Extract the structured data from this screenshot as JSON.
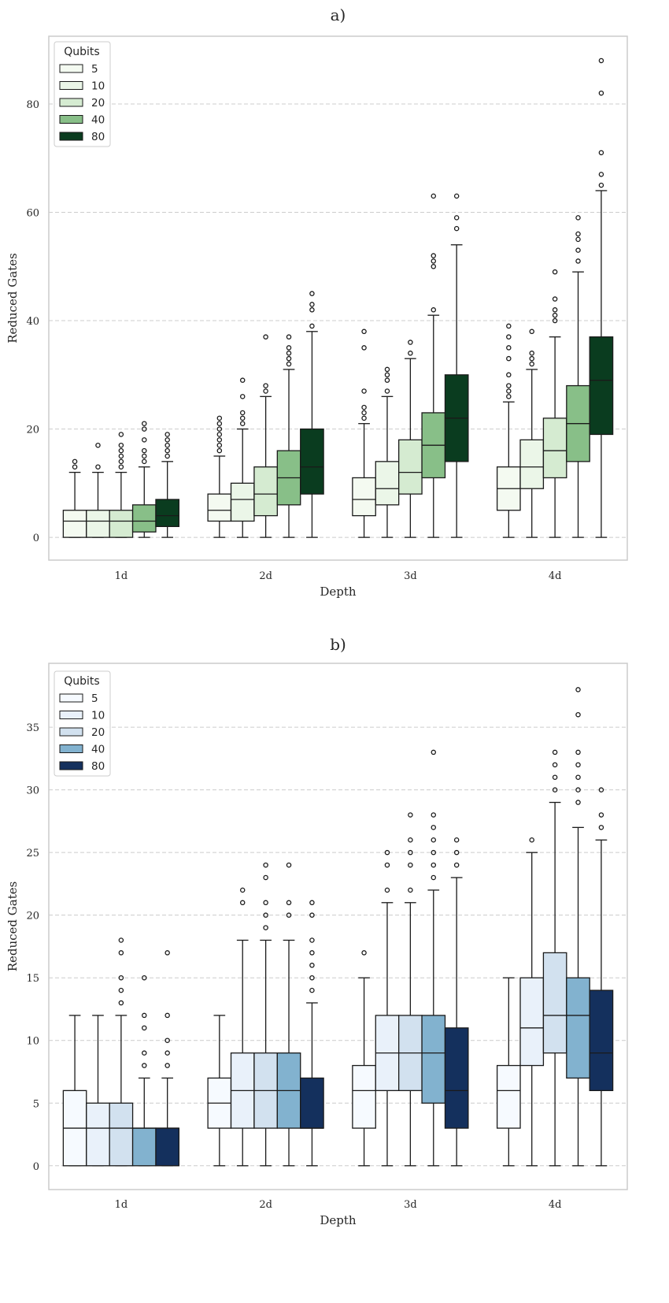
{
  "chart_data": [
    {
      "type": "box",
      "title": "a)",
      "xlabel": "Depth",
      "ylabel": "Reduced Gates",
      "ylim": [
        -4.2,
        92.5
      ],
      "yticks": [
        0,
        20,
        40,
        60,
        80
      ],
      "grid": "horizontal-dashed",
      "categories": [
        "1d",
        "2d",
        "3d",
        "4d"
      ],
      "legend": {
        "title": "Qubits",
        "placement": "top-left"
      },
      "series": [
        {
          "name": "5",
          "color": "#f4faf1",
          "boxes": [
            {
              "whislo": 0,
              "q1": 0,
              "med": 3,
              "q3": 5,
              "whishi": 12,
              "fliers": [
                13,
                14
              ]
            },
            {
              "whislo": 0,
              "q1": 3,
              "med": 5,
              "q3": 8,
              "whishi": 15,
              "fliers": [
                16,
                17,
                18,
                19,
                20,
                21,
                22
              ]
            },
            {
              "whislo": 0,
              "q1": 4,
              "med": 7,
              "q3": 11,
              "whishi": 21,
              "fliers": [
                22,
                23,
                24,
                27,
                35,
                38
              ]
            },
            {
              "whislo": 0,
              "q1": 5,
              "med": 9,
              "q3": 13,
              "whishi": 25,
              "fliers": [
                26,
                27,
                28,
                30,
                33,
                35,
                37,
                39
              ]
            }
          ]
        },
        {
          "name": "10",
          "color": "#ebf6e8",
          "boxes": [
            {
              "whislo": 0,
              "q1": 0,
              "med": 3,
              "q3": 5,
              "whishi": 12,
              "fliers": [
                13,
                17
              ]
            },
            {
              "whislo": 0,
              "q1": 3,
              "med": 7,
              "q3": 10,
              "whishi": 20,
              "fliers": [
                21,
                22,
                23,
                26,
                29
              ]
            },
            {
              "whislo": 0,
              "q1": 6,
              "med": 9,
              "q3": 14,
              "whishi": 26,
              "fliers": [
                27,
                29,
                30,
                31
              ]
            },
            {
              "whislo": 0,
              "q1": 9,
              "med": 13,
              "q3": 18,
              "whishi": 31,
              "fliers": [
                32,
                33,
                34,
                38
              ]
            }
          ]
        },
        {
          "name": "20",
          "color": "#d5ebd1",
          "boxes": [
            {
              "whislo": 0,
              "q1": 0,
              "med": 3,
              "q3": 5,
              "whishi": 12,
              "fliers": [
                13,
                14,
                15,
                16,
                17,
                19
              ]
            },
            {
              "whislo": 0,
              "q1": 4,
              "med": 8,
              "q3": 13,
              "whishi": 26,
              "fliers": [
                27,
                28,
                37
              ]
            },
            {
              "whislo": 0,
              "q1": 8,
              "med": 12,
              "q3": 18,
              "whishi": 33,
              "fliers": [
                34,
                36
              ]
            },
            {
              "whislo": 0,
              "q1": 11,
              "med": 16,
              "q3": 22,
              "whishi": 37,
              "fliers": [
                40,
                41,
                42,
                44,
                49
              ]
            }
          ]
        },
        {
          "name": "40",
          "color": "#88bf88",
          "boxes": [
            {
              "whislo": 0,
              "q1": 1,
              "med": 3,
              "q3": 6,
              "whishi": 13,
              "fliers": [
                14,
                15,
                16,
                18,
                20,
                21
              ]
            },
            {
              "whislo": 0,
              "q1": 6,
              "med": 11,
              "q3": 16,
              "whishi": 31,
              "fliers": [
                32,
                33,
                34,
                35,
                37
              ]
            },
            {
              "whislo": 0,
              "q1": 11,
              "med": 17,
              "q3": 23,
              "whishi": 41,
              "fliers": [
                42,
                50,
                51,
                52,
                63
              ]
            },
            {
              "whislo": 0,
              "q1": 14,
              "med": 21,
              "q3": 28,
              "whishi": 49,
              "fliers": [
                51,
                53,
                55,
                56,
                59
              ]
            }
          ]
        },
        {
          "name": "80",
          "color": "#0a3c1f",
          "boxes": [
            {
              "whislo": 0,
              "q1": 2,
              "med": 4,
              "q3": 7,
              "whishi": 14,
              "fliers": [
                15,
                16,
                17,
                18,
                19
              ]
            },
            {
              "whislo": 0,
              "q1": 8,
              "med": 13,
              "q3": 20,
              "whishi": 38,
              "fliers": [
                39,
                42,
                43,
                45
              ]
            },
            {
              "whislo": 0,
              "q1": 14,
              "med": 22,
              "q3": 30,
              "whishi": 54,
              "fliers": [
                57,
                59,
                63
              ]
            },
            {
              "whislo": 0,
              "q1": 19,
              "med": 29,
              "q3": 37,
              "whishi": 64,
              "fliers": [
                65,
                67,
                71,
                82,
                88
              ]
            }
          ]
        }
      ]
    },
    {
      "type": "box",
      "title": "b)",
      "xlabel": "Depth",
      "ylabel": "Reduced Gates",
      "ylim": [
        -1.9,
        40.1
      ],
      "yticks": [
        0,
        5,
        10,
        15,
        20,
        25,
        30,
        35
      ],
      "grid": "horizontal-dashed",
      "categories": [
        "1d",
        "2d",
        "3d",
        "4d"
      ],
      "legend": {
        "title": "Qubits",
        "placement": "top-left"
      },
      "series": [
        {
          "name": "5",
          "color": "#f6faff",
          "boxes": [
            {
              "whislo": 0,
              "q1": 0,
              "med": 3,
              "q3": 6,
              "whishi": 12,
              "fliers": []
            },
            {
              "whislo": 0,
              "q1": 3,
              "med": 5,
              "q3": 7,
              "whishi": 12,
              "fliers": []
            },
            {
              "whislo": 0,
              "q1": 3,
              "med": 6,
              "q3": 8,
              "whishi": 15,
              "fliers": [
                17
              ]
            },
            {
              "whislo": 0,
              "q1": 3,
              "med": 6,
              "q3": 8,
              "whishi": 15,
              "fliers": []
            }
          ]
        },
        {
          "name": "10",
          "color": "#e9f1fa",
          "boxes": [
            {
              "whislo": 0,
              "q1": 0,
              "med": 3,
              "q3": 5,
              "whishi": 12,
              "fliers": []
            },
            {
              "whislo": 0,
              "q1": 3,
              "med": 6,
              "q3": 9,
              "whishi": 18,
              "fliers": [
                21,
                22
              ]
            },
            {
              "whislo": 0,
              "q1": 6,
              "med": 9,
              "q3": 12,
              "whishi": 21,
              "fliers": [
                22,
                24,
                25
              ]
            },
            {
              "whislo": 0,
              "q1": 8,
              "med": 11,
              "q3": 15,
              "whishi": 25,
              "fliers": [
                26
              ]
            }
          ]
        },
        {
          "name": "20",
          "color": "#d2e1ef",
          "boxes": [
            {
              "whislo": 0,
              "q1": 0,
              "med": 3,
              "q3": 5,
              "whishi": 12,
              "fliers": [
                13,
                14,
                15,
                17,
                18
              ]
            },
            {
              "whislo": 0,
              "q1": 3,
              "med": 6,
              "q3": 9,
              "whishi": 18,
              "fliers": [
                19,
                20,
                21,
                23,
                24
              ]
            },
            {
              "whislo": 0,
              "q1": 6,
              "med": 9,
              "q3": 12,
              "whishi": 21,
              "fliers": [
                22,
                24,
                25,
                26,
                28
              ]
            },
            {
              "whislo": 0,
              "q1": 9,
              "med": 12,
              "q3": 17,
              "whishi": 29,
              "fliers": [
                30,
                31,
                32,
                33
              ]
            }
          ]
        },
        {
          "name": "40",
          "color": "#82b2cf",
          "boxes": [
            {
              "whislo": 0,
              "q1": 0,
              "med": 3,
              "q3": 3,
              "whishi": 7,
              "fliers": [
                8,
                9,
                11,
                12,
                15
              ]
            },
            {
              "whislo": 0,
              "q1": 3,
              "med": 6,
              "q3": 9,
              "whishi": 18,
              "fliers": [
                20,
                21,
                24
              ]
            },
            {
              "whislo": 0,
              "q1": 5,
              "med": 9,
              "q3": 12,
              "whishi": 22,
              "fliers": [
                23,
                24,
                25,
                26,
                27,
                28,
                33
              ]
            },
            {
              "whislo": 0,
              "q1": 7,
              "med": 12,
              "q3": 15,
              "whishi": 27,
              "fliers": [
                29,
                30,
                31,
                32,
                33,
                36,
                38
              ]
            }
          ]
        },
        {
          "name": "80",
          "color": "#14305d",
          "boxes": [
            {
              "whislo": 0,
              "q1": 0,
              "med": 3,
              "q3": 3,
              "whishi": 7,
              "fliers": [
                8,
                9,
                10,
                12,
                17
              ]
            },
            {
              "whislo": 0,
              "q1": 3,
              "med": 3,
              "q3": 7,
              "whishi": 13,
              "fliers": [
                14,
                15,
                16,
                17,
                18,
                20,
                21
              ]
            },
            {
              "whislo": 0,
              "q1": 3,
              "med": 6,
              "q3": 11,
              "whishi": 23,
              "fliers": [
                24,
                25,
                26
              ]
            },
            {
              "whislo": 0,
              "q1": 6,
              "med": 9,
              "q3": 14,
              "whishi": 26,
              "fliers": [
                27,
                28,
                30
              ]
            }
          ]
        }
      ]
    }
  ]
}
